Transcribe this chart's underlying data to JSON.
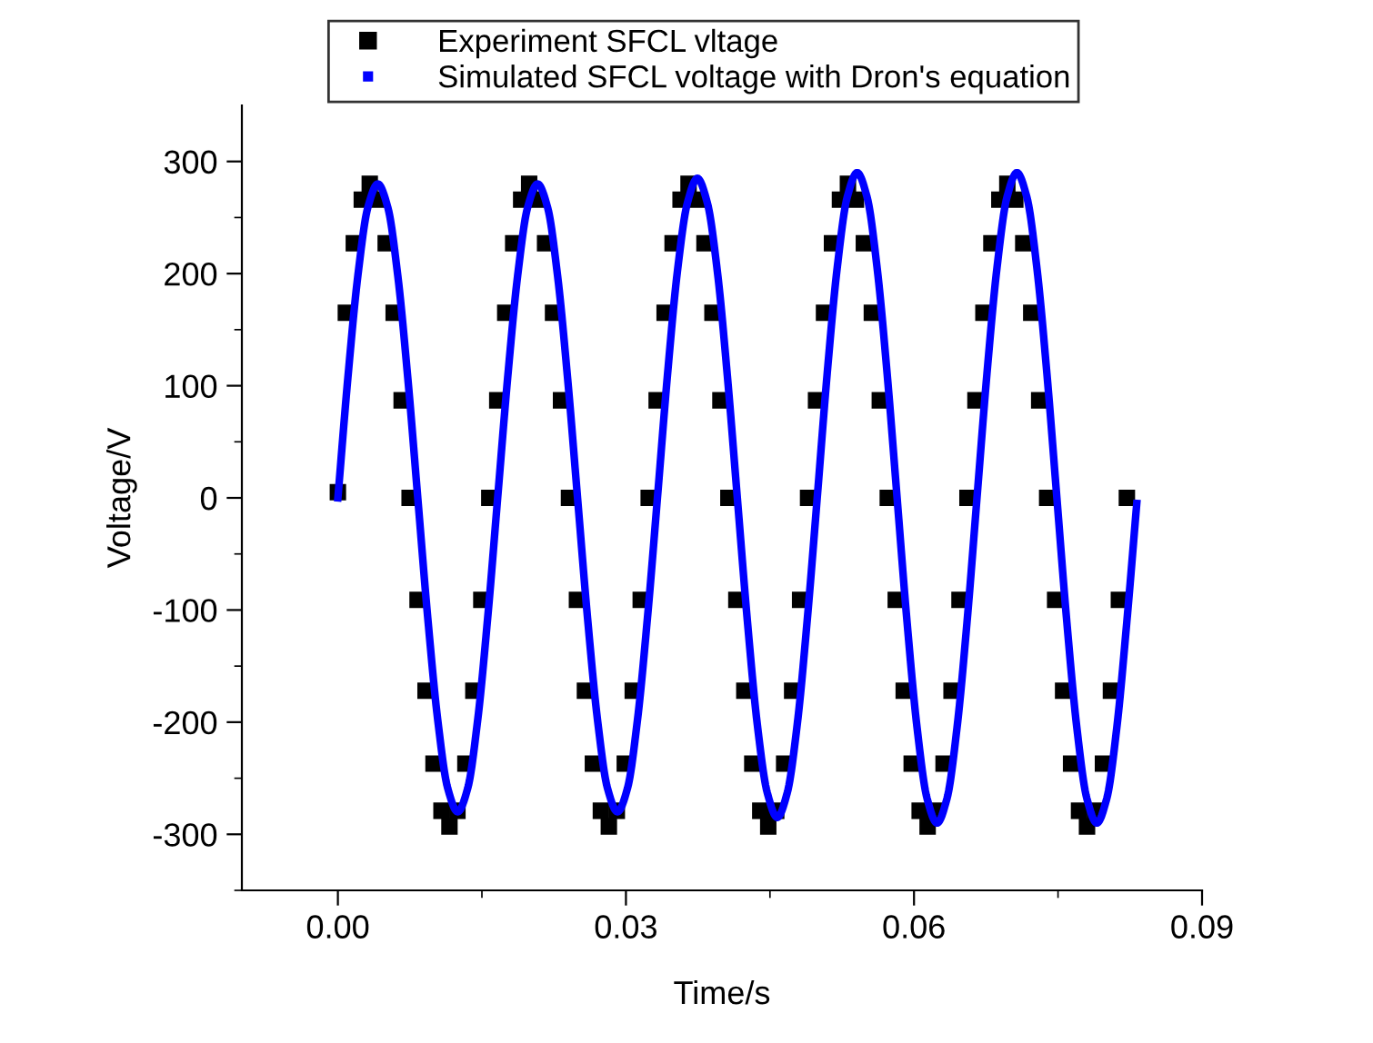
{
  "chart_data": {
    "type": "line",
    "xlabel": "Time/s",
    "ylabel": "Voltage/V",
    "legend": "top",
    "grid": false,
    "xlim": [
      -0.01,
      0.09
    ],
    "xticks": [
      {
        "value": 0,
        "label": "0.00"
      },
      {
        "value": 0.03,
        "label": "0.03"
      },
      {
        "value": 0.06,
        "label": "0.06"
      },
      {
        "value": 0.09,
        "label": "0.09"
      }
    ],
    "ylim": [
      -350,
      350
    ],
    "yticks": [
      -300,
      -200,
      -100,
      0,
      100,
      200,
      300
    ],
    "series": [
      {
        "name": "Experiment SFCL vltage",
        "type": "scatter",
        "marker": "square",
        "color": "#000000",
        "x": [
          0,
          0.00083,
          0.00166,
          0.00249,
          0.00332,
          0.00415,
          0.00498,
          0.00581,
          0.00664,
          0.00747,
          0.0083,
          0.00913,
          0.00996,
          0.01079,
          0.01162,
          0.01245,
          0.01328,
          0.01411,
          0.01494,
          0.01577,
          0.0166,
          0.01743,
          0.01826,
          0.01909,
          0.01992,
          0.02075,
          0.02158,
          0.02241,
          0.02324,
          0.02407,
          0.0249,
          0.02573,
          0.02656,
          0.02739,
          0.02822,
          0.02905,
          0.02988,
          0.03071,
          0.03154,
          0.03237,
          0.0332,
          0.03403,
          0.03486,
          0.03569,
          0.03652,
          0.03735,
          0.03818,
          0.03901,
          0.03984,
          0.04067,
          0.0415,
          0.04233,
          0.04316,
          0.04399,
          0.04482,
          0.04565,
          0.04648,
          0.04731,
          0.04814,
          0.04897,
          0.0498,
          0.05063,
          0.05146,
          0.05229,
          0.05312,
          0.05395,
          0.05478,
          0.05561,
          0.05644,
          0.05727,
          0.0581,
          0.05893,
          0.05976,
          0.06059,
          0.06142,
          0.06225,
          0.06308,
          0.06391,
          0.06474,
          0.06557,
          0.0664,
          0.06723,
          0.06806,
          0.06889,
          0.06972,
          0.07055,
          0.07138,
          0.07221,
          0.07304,
          0.07387,
          0.0747,
          0.07553,
          0.07636,
          0.07719,
          0.07802,
          0.07885,
          0.07968,
          0.08051,
          0.08134,
          0.08217
        ],
        "values": [
          5,
          165,
          227,
          266,
          280,
          266,
          227,
          165,
          87,
          0,
          -91,
          -172,
          -237,
          -279,
          -293,
          -279,
          -237,
          -172,
          -91,
          0,
          87,
          165,
          227,
          266,
          280,
          266,
          227,
          165,
          87,
          0,
          -91,
          -172,
          -237,
          -279,
          -293,
          -279,
          -237,
          -172,
          -91,
          0,
          87,
          165,
          227,
          266,
          280,
          266,
          227,
          165,
          87,
          0,
          -91,
          -172,
          -237,
          -279,
          -293,
          -279,
          -237,
          -172,
          -91,
          0,
          87,
          165,
          227,
          266,
          280,
          266,
          227,
          165,
          87,
          0,
          -91,
          -172,
          -237,
          -279,
          -293,
          -279,
          -237,
          -172,
          -91,
          0,
          87,
          165,
          227,
          266,
          280,
          266,
          227,
          165,
          87,
          0,
          -91,
          -172,
          -237,
          -279,
          -293,
          -279,
          -237,
          -172,
          -91,
          0
        ]
      },
      {
        "name": "Simulated SFCL voltage with Dron's equation",
        "marker": "none",
        "line_style": "solid",
        "color": "#0000ff",
        "x": [
          0,
          0.00104,
          0.00208,
          0.00312,
          0.00416,
          0.0052,
          0.00624,
          0.00728,
          0.00832,
          0.00936,
          0.0104,
          0.01144,
          0.01248,
          0.01352,
          0.01456,
          0.0156,
          0.01664,
          0.01768,
          0.01872,
          0.01976,
          0.0208,
          0.02184,
          0.02288,
          0.02392,
          0.02496,
          0.026,
          0.02704,
          0.02808,
          0.02912,
          0.03016,
          0.0312,
          0.03224,
          0.03328,
          0.03432,
          0.03536,
          0.0364,
          0.03744,
          0.03848,
          0.03952,
          0.04056,
          0.0416,
          0.04264,
          0.04368,
          0.04472,
          0.04576,
          0.0468,
          0.04784,
          0.04888,
          0.04992,
          0.05096,
          0.052,
          0.05304,
          0.05408,
          0.05512,
          0.05616,
          0.0572,
          0.05824,
          0.05928,
          0.06032,
          0.06136,
          0.0624,
          0.06344,
          0.06448,
          0.06552,
          0.06656,
          0.0676,
          0.06864,
          0.06968,
          0.07072,
          0.07176,
          0.0728,
          0.07384,
          0.07488,
          0.07592,
          0.07696,
          0.078,
          0.07904,
          0.08008,
          0.08112,
          0.08216,
          0.0832
        ],
        "values": [
          0,
          107,
          198,
          259,
          280,
          259,
          198,
          107,
          0,
          -107,
          -198,
          -259,
          -280,
          -259,
          -198,
          -107,
          0,
          107,
          198,
          259,
          280,
          259,
          198,
          107,
          0,
          -107,
          -198,
          -259,
          -280,
          -259,
          -198,
          -107,
          0,
          109,
          202,
          263,
          285,
          263,
          202,
          109,
          0,
          -109,
          -202,
          -263,
          -285,
          -263,
          -202,
          -109,
          0,
          111,
          205,
          268,
          290,
          268,
          205,
          111,
          0,
          -111,
          -205,
          -268,
          -290,
          -268,
          -205,
          -111,
          0,
          111,
          205,
          268,
          290,
          268,
          205,
          111,
          0,
          -111,
          -205,
          -268,
          -290,
          -268,
          -205,
          -111,
          -5
        ]
      }
    ]
  }
}
